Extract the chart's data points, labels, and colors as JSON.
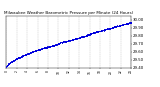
{
  "title": "Milwaukee Weather Barometric Pressure per Minute (24 Hours)",
  "title_fontsize": 3.0,
  "dot_color": "#0000dd",
  "dot_size": 0.4,
  "grid_color": "#999999",
  "bg_color": "#ffffff",
  "ylim": [
    29.4,
    30.05
  ],
  "xlim": [
    0,
    1440
  ],
  "ytick_fontsize": 2.8,
  "xtick_fontsize": 2.2,
  "n_points": 1440,
  "pressure_start": 29.42,
  "pressure_end": 29.98,
  "x_tick_interval": 120,
  "y_tick_values": [
    29.4,
    29.5,
    29.6,
    29.7,
    29.8,
    29.9,
    30.0
  ],
  "y_tick_labels": [
    "29.4.",
    "29.5.",
    "29.6.",
    "29.7.",
    "29.8.",
    "29.9.",
    "30.0."
  ]
}
